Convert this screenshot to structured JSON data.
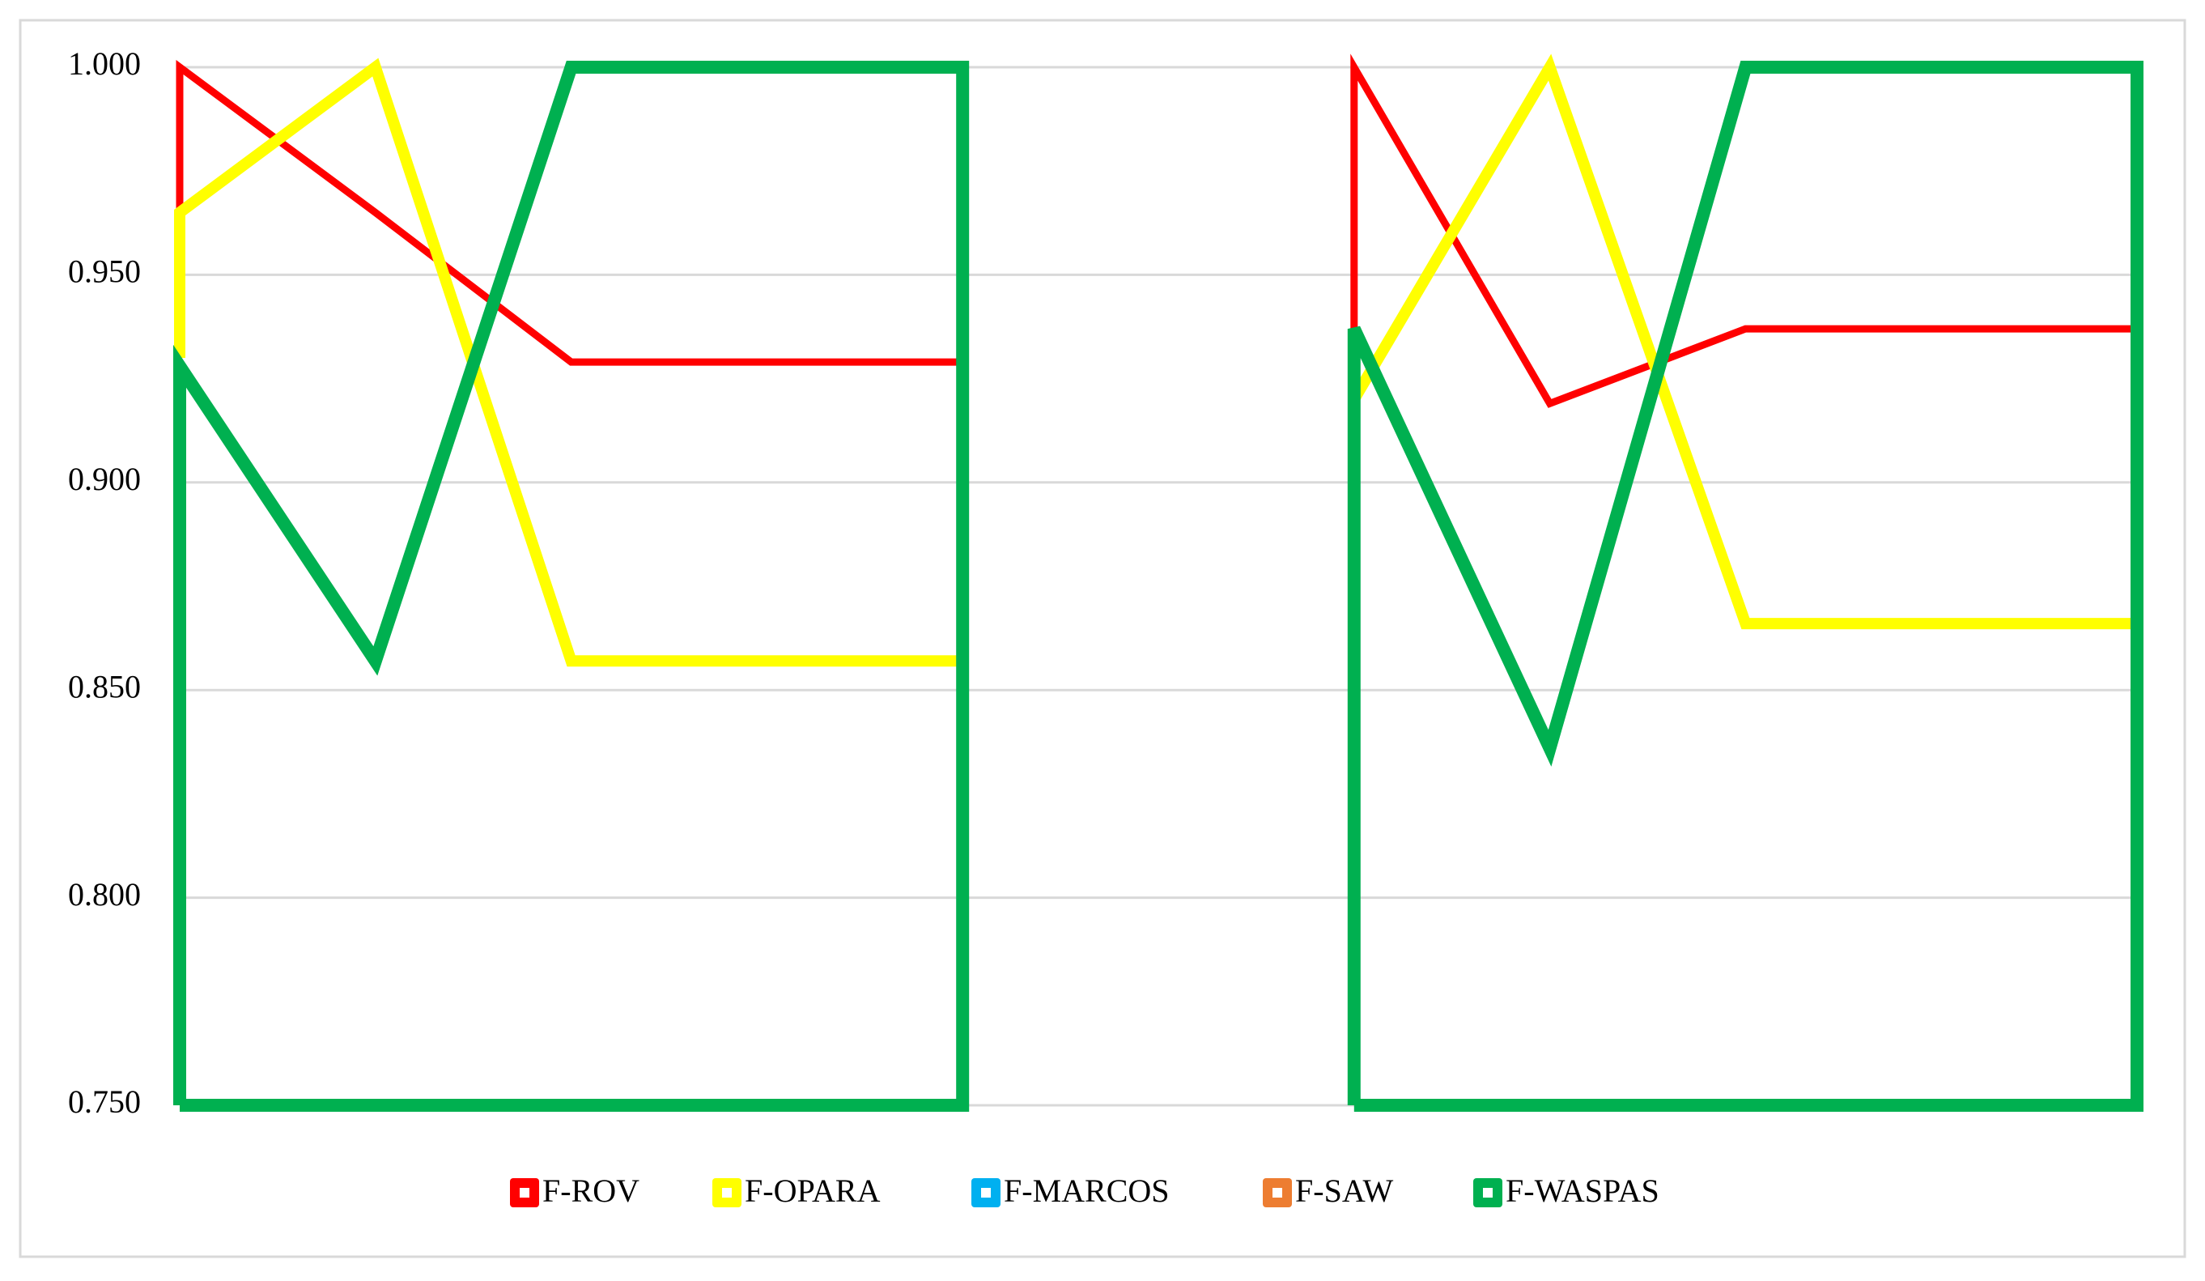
{
  "chart_data": {
    "type": "line",
    "xlim": [
      1,
      11
    ],
    "ylim": [
      0.75,
      1.0
    ],
    "yticks": [
      {
        "value": 0.75,
        "label": "0.750"
      },
      {
        "value": 0.8,
        "label": "0.800"
      },
      {
        "value": 0.85,
        "label": "0.850"
      },
      {
        "value": 0.9,
        "label": "0.900"
      },
      {
        "value": 0.95,
        "label": "0.950"
      },
      {
        "value": 1.0,
        "label": "1.000"
      }
    ],
    "grid": true,
    "legend": "bottom",
    "series": [
      {
        "name": "F-ROV",
        "color": "#ff0000",
        "x": [
          1,
          1,
          2,
          3,
          4,
          5,
          6,
          7,
          7,
          8,
          9,
          10,
          11
        ],
        "values": [
          0.965,
          1.0,
          0.965,
          0.929,
          0.929,
          0.929,
          null,
          0.937,
          1.0,
          0.919,
          0.937,
          0.937,
          0.937
        ]
      },
      {
        "name": "F-OPARA",
        "color": "#ffff00",
        "x": [
          1,
          1,
          2,
          3,
          4,
          5,
          6,
          7,
          8,
          9,
          10,
          11
        ],
        "values": [
          0.93,
          0.965,
          1.0,
          0.857,
          0.857,
          0.857,
          null,
          0.92,
          1.0,
          0.866,
          0.866,
          0.866
        ]
      },
      {
        "name": "F-MARCOS",
        "color": "#00b0f0",
        "x": [],
        "values": []
      },
      {
        "name": "F-SAW",
        "color": "#ed7d31",
        "x": [],
        "values": []
      },
      {
        "name": "F-WASPAS",
        "color": "#00b050",
        "x": [
          1,
          1,
          2,
          3,
          4,
          5,
          5,
          1,
          6,
          7,
          7,
          8,
          9,
          10,
          11,
          11,
          7
        ],
        "values": [
          0.75,
          0.928,
          0.857,
          1.0,
          1.0,
          1.0,
          0.75,
          0.75,
          null,
          0.75,
          0.937,
          0.836,
          1.0,
          1.0,
          1.0,
          0.75,
          0.75
        ]
      }
    ]
  }
}
